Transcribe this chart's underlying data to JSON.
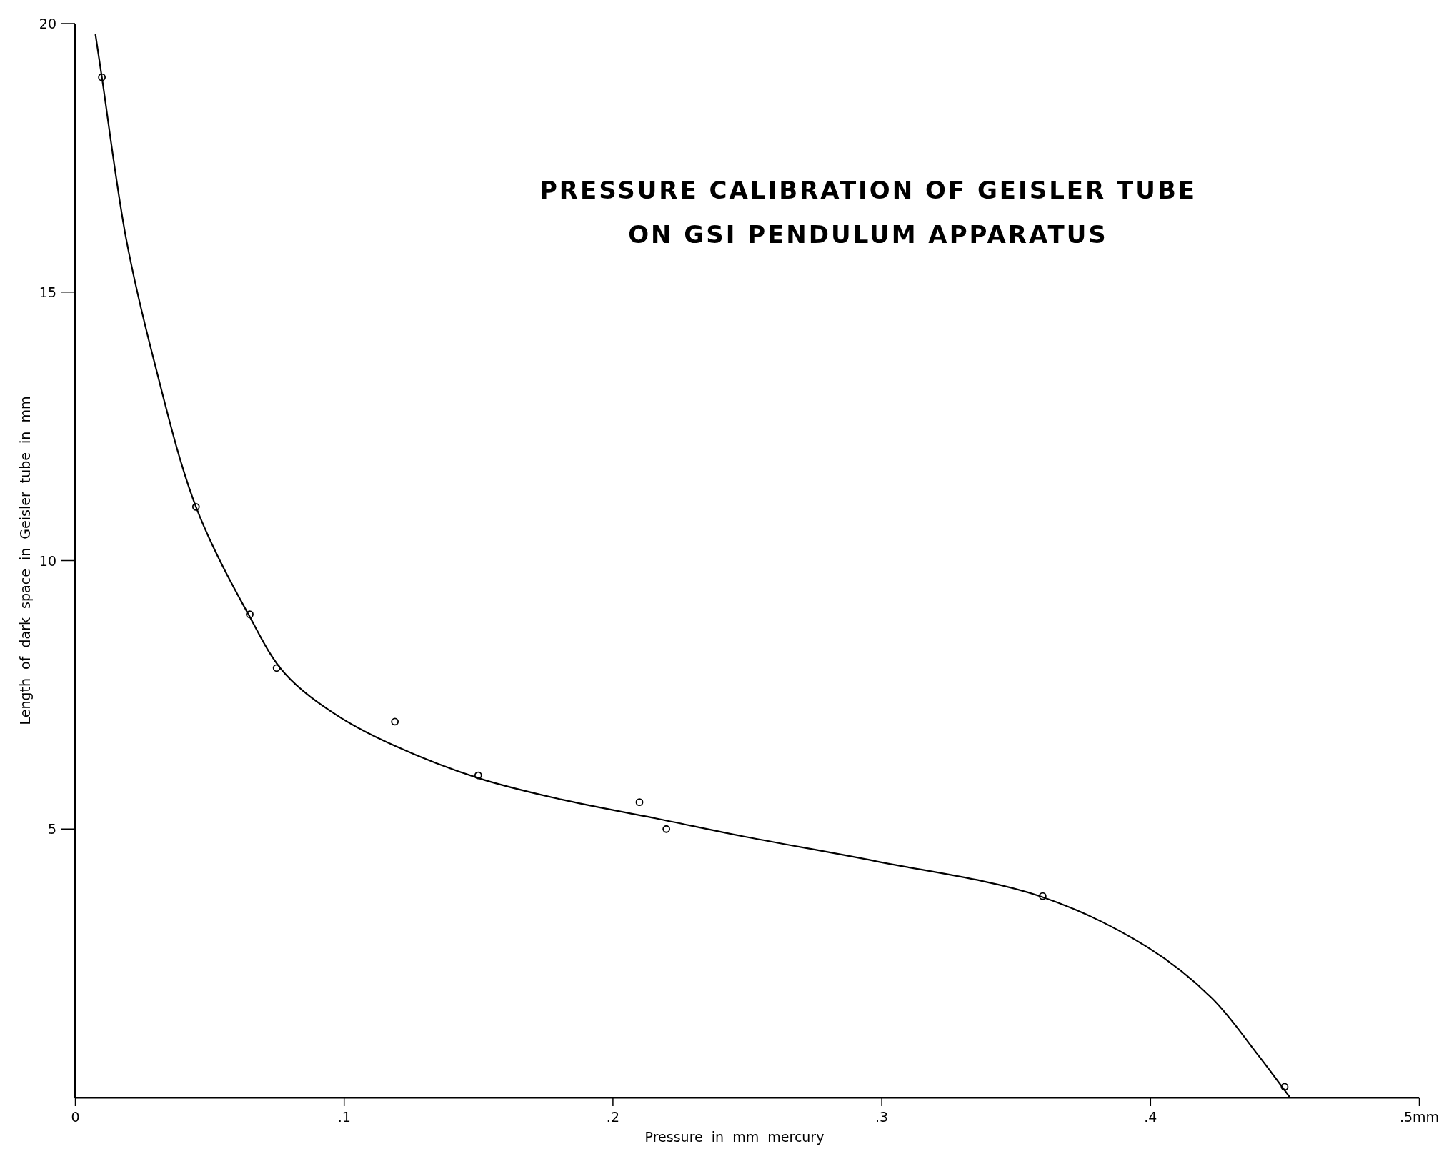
{
  "chart_data": {
    "type": "scatter",
    "title": "PRESSURE CALIBRATION OF GEISLER TUBE",
    "subtitle": "ON GSI PENDULUM APPARATUS",
    "xlabel": "Pressure  in  mm  mercury",
    "ylabel": "Length  of  dark  space  in  Geisler  tube  in  mm",
    "xlim": [
      0,
      0.5
    ],
    "ylim": [
      0,
      20
    ],
    "xticks": [
      {
        "value": 0,
        "label": "0"
      },
      {
        "value": 0.1,
        "label": ".1"
      },
      {
        "value": 0.2,
        "label": ".2"
      },
      {
        "value": 0.3,
        "label": ".3"
      },
      {
        "value": 0.4,
        "label": ".4"
      },
      {
        "value": 0.5,
        "label": ".5mm"
      }
    ],
    "yticks": [
      5,
      10,
      15,
      20
    ],
    "grid": false,
    "series": [
      {
        "color": "#000000",
        "marker": "circle",
        "x": [
          0.01,
          0.045,
          0.065,
          0.075,
          0.119,
          0.15,
          0.21,
          0.22,
          0.36,
          0.45
        ],
        "values": [
          19,
          11,
          9,
          8,
          7,
          6,
          5.5,
          5,
          3.75,
          0.2
        ]
      },
      {
        "type": "line",
        "color": "#000000",
        "marker": "none",
        "line_style": "solid",
        "x": [
          0.0076,
          0.01,
          0.019,
          0.029,
          0.045,
          0.0645,
          0.078,
          0.098,
          0.119,
          0.15,
          0.181,
          0.216,
          0.25,
          0.298,
          0.359,
          0.399,
          0.423,
          0.44,
          0.452
        ],
        "values": [
          19.8,
          19,
          16,
          13.8,
          11,
          9,
          7.9,
          7.1,
          6.55,
          5.95,
          5.55,
          5.2,
          4.85,
          4.4,
          3.75,
          2.8,
          1.85,
          0.8,
          0
        ]
      }
    ]
  }
}
